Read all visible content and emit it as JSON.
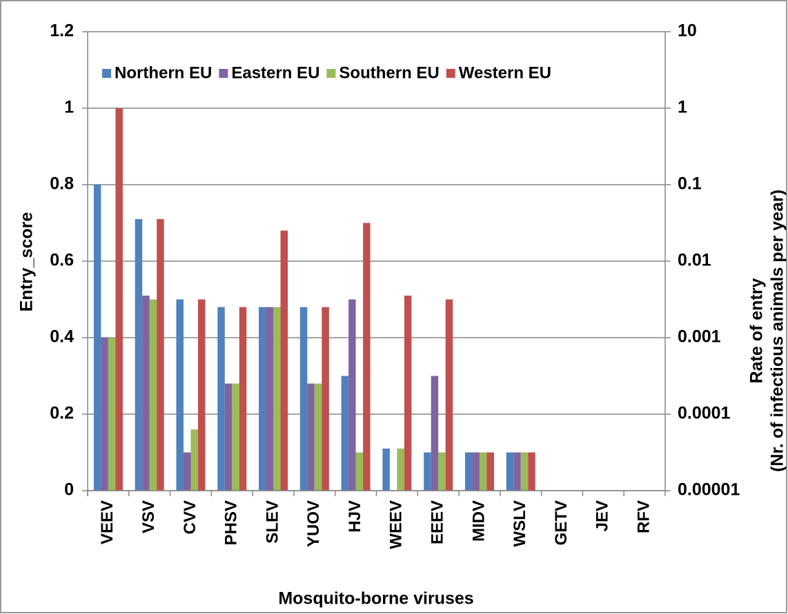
{
  "chart_data": {
    "type": "bar",
    "xlabel": "Mosquito-borne viruses",
    "ylabel": "Entry_score",
    "y2label": [
      "Rate of entry",
      "(Nr. of infectious animals per year)"
    ],
    "categories": [
      "VEEV",
      "VSV",
      "CVV",
      "PHSV",
      "SLEV",
      "YUOV",
      "HJV",
      "WEEV",
      "EEEV",
      "MIDV",
      "WSLV",
      "GETV",
      "JEV",
      "RFV"
    ],
    "series": [
      {
        "name": "Northern EU",
        "color": "#4f81bd",
        "values": [
          0.8,
          0.71,
          0.5,
          0.48,
          0.48,
          0.48,
          0.3,
          0.11,
          0.1,
          0.1,
          0.1,
          0,
          0,
          0
        ]
      },
      {
        "name": "Eastern EU",
        "color": "#8064a2",
        "values": [
          0.4,
          0.51,
          0.1,
          0.28,
          0.48,
          0.28,
          0.5,
          0,
          0.3,
          0.1,
          0.1,
          0,
          0,
          0
        ]
      },
      {
        "name": "Southern EU",
        "color": "#9bbb59",
        "values": [
          0.4,
          0.5,
          0.16,
          0.28,
          0.48,
          0.28,
          0.1,
          0.11,
          0.1,
          0.1,
          0.1,
          0,
          0,
          0
        ]
      },
      {
        "name": "Western EU",
        "color": "#c0504d",
        "values": [
          1.0,
          0.71,
          0.5,
          0.48,
          0.68,
          0.48,
          0.7,
          0.51,
          0.5,
          0.1,
          0.1,
          0,
          0,
          0
        ]
      }
    ],
    "ylim": [
      0,
      1.2
    ],
    "yticks": [
      0,
      0.2,
      0.4,
      0.6,
      0.8,
      1,
      1.2
    ],
    "y2lim": [
      1e-05,
      10
    ],
    "y2log": true,
    "y2ticks": [
      {
        "value": 1e-05,
        "label": "0.00001"
      },
      0.0001,
      0.001,
      0.01,
      0.1,
      1,
      10
    ],
    "grid": true,
    "legend": "top"
  }
}
